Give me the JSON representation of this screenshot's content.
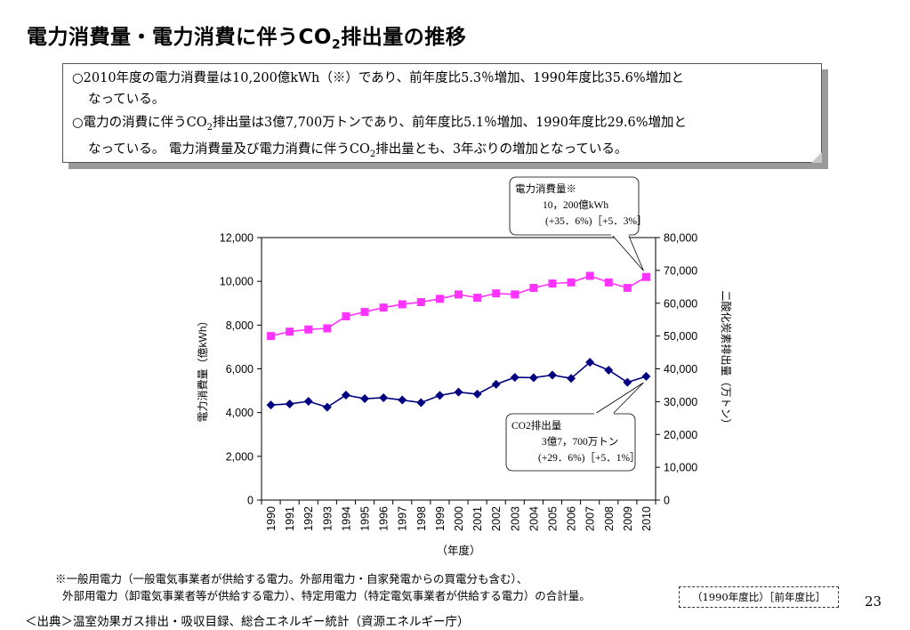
{
  "title": {
    "main": "電力消費量・電力消費に伴うCO",
    "sub": "2",
    "rest": "排出量の推移"
  },
  "summary": {
    "p1_line1": "○2010年度の電力消費量は10,200億kWh（※）であり、前年度比5.3％増加、1990年度比35.6%増加と",
    "p1_line2": "なっている。",
    "p2_line1a": "○電力の消費に伴うCO",
    "p2_line1_sub": "2",
    "p2_line1b": "排出量は3億7,700万トンであり、前年度比5.1％増加、1990年度比29.6%増加と",
    "p2_line2a": "なっている。 電力消費量及び電力消費に伴うCO",
    "p2_line2_sub": "2",
    "p2_line2b": "排出量とも、3年ぶりの増加となっている。"
  },
  "chart_data": {
    "type": "line",
    "categories": [
      "1990",
      "1991",
      "1992",
      "1993",
      "1994",
      "1995",
      "1996",
      "1997",
      "1998",
      "1999",
      "2000",
      "2001",
      "2002",
      "2003",
      "2004",
      "2005",
      "2006",
      "2007",
      "2008",
      "2009",
      "2010"
    ],
    "series": [
      {
        "name": "電力消費量",
        "axis": "left",
        "color": "#ff33ff",
        "marker": "square",
        "values": [
          7500,
          7700,
          7800,
          7850,
          8400,
          8600,
          8800,
          8950,
          9050,
          9200,
          9400,
          9250,
          9450,
          9400,
          9700,
          9900,
          9950,
          10250,
          9950,
          9700,
          10200
        ]
      },
      {
        "name": "CO2排出量",
        "axis": "right",
        "color": "#000080",
        "marker": "diamond",
        "values": [
          29000,
          29300,
          30100,
          28300,
          32000,
          30900,
          31200,
          30500,
          29700,
          31900,
          32900,
          32300,
          35300,
          37400,
          37300,
          38100,
          37100,
          42000,
          39600,
          35900,
          37700
        ]
      }
    ],
    "xlabel": "（年度）",
    "ylabel_left": "電力消費量（億kWh）",
    "ylabel_right": "二酸化炭素排出量（万トン）",
    "ylim_left": [
      0,
      12000
    ],
    "ylim_right": [
      0,
      80000
    ],
    "yticks_left": [
      "0",
      "2,000",
      "4,000",
      "6,000",
      "8,000",
      "10,000",
      "12,000"
    ],
    "yticks_right": [
      "0",
      "10,000",
      "20,000",
      "30,000",
      "40,000",
      "50,000",
      "60,000",
      "70,000",
      "80,000"
    ],
    "grid": false,
    "callout_power": {
      "line1": "電力消費量※",
      "line2": "10，200億kWh",
      "line3": "(+35．6%)［+5．3%］"
    },
    "callout_co2": {
      "line1": "CO2排出量",
      "line2": "3億7，700万トン",
      "line3": "(+29．6%)［+5．1%］"
    }
  },
  "footnotes": {
    "note1": "※一般用電力（一般電気事業者が供給する電力。外部用電力・自家発電からの買電分も含む）、",
    "note2": "外部用電力（卸電気事業者等が供給する電力）、特定用電力（特定電気事業者が供給する電力）の合計量。",
    "source": "＜出典＞温室効果ガス排出・吸収目録、総合エネルギー統計（資源エネルギー庁）",
    "legend_key": "（1990年度比）［前年度比］",
    "page_number": "23"
  }
}
